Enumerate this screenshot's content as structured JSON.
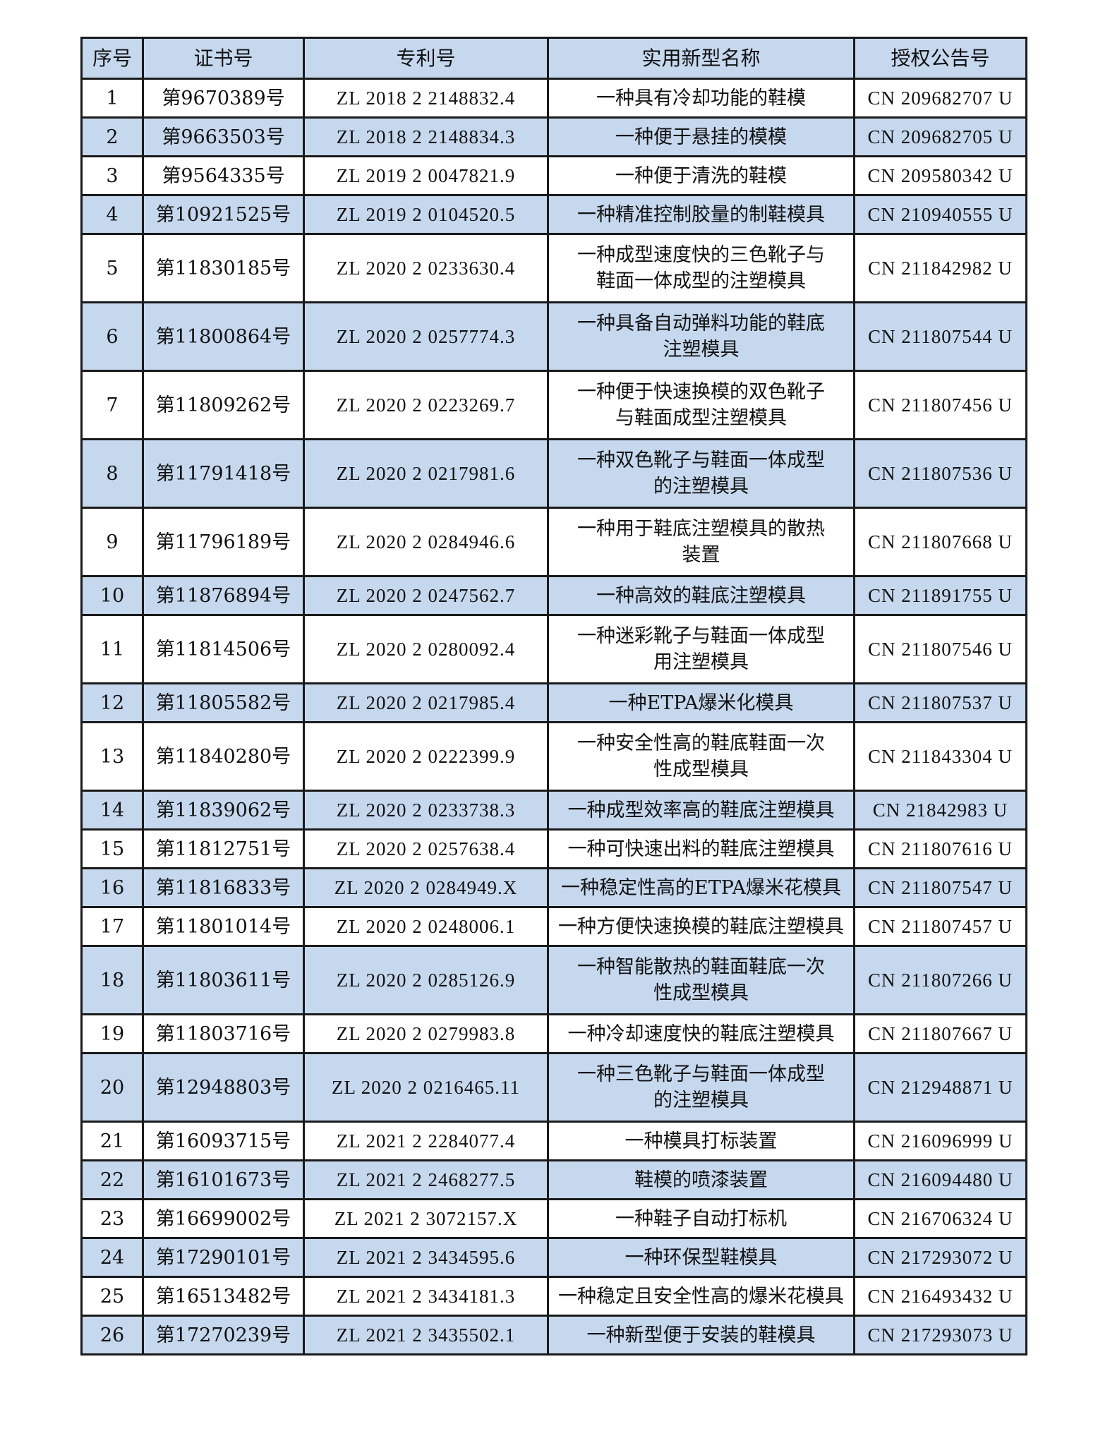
{
  "headers": [
    "序号",
    "证书号",
    "专利号",
    "实用新型名称",
    "授权公告号"
  ],
  "rows": [
    {
      "no": "1",
      "cert": "第9670389号",
      "patent": "ZL 2018 2 2148832.4",
      "name": [
        "一种具有冷却功能的鞋模"
      ],
      "pub": "CN 209682707 U"
    },
    {
      "no": "2",
      "cert": "第9663503号",
      "patent": "ZL 2018 2 2148834.3",
      "name": [
        "一种便于悬挂的模模"
      ],
      "pub": "CN 209682705 U"
    },
    {
      "no": "3",
      "cert": "第9564335号",
      "patent": "ZL 2019 2 0047821.9",
      "name": [
        "一种便于清洗的鞋模"
      ],
      "pub": "CN 209580342 U"
    },
    {
      "no": "4",
      "cert": "第10921525号",
      "patent": "ZL 2019 2 0104520.5",
      "name": [
        "一种精准控制胶量的制鞋模具"
      ],
      "pub": "CN 210940555 U"
    },
    {
      "no": "5",
      "cert": "第11830185号",
      "patent": "ZL 2020 2 0233630.4",
      "name": [
        "一种成型速度快的三色靴子与",
        "鞋面一体成型的注塑模具"
      ],
      "pub": "CN 211842982 U"
    },
    {
      "no": "6",
      "cert": "第11800864号",
      "patent": "ZL 2020 2 0257774.3",
      "name": [
        "一种具备自动弹料功能的鞋底",
        "注塑模具"
      ],
      "pub": "CN 211807544 U"
    },
    {
      "no": "7",
      "cert": "第11809262号",
      "patent": "ZL 2020 2 0223269.7",
      "name": [
        "一种便于快速换模的双色靴子",
        "与鞋面成型注塑模具"
      ],
      "pub": "CN 211807456 U"
    },
    {
      "no": "8",
      "cert": "第11791418号",
      "patent": "ZL 2020 2 0217981.6",
      "name": [
        "一种双色靴子与鞋面一体成型",
        "的注塑模具"
      ],
      "pub": "CN 211807536 U"
    },
    {
      "no": "9",
      "cert": "第11796189号",
      "patent": "ZL 2020 2 0284946.6",
      "name": [
        "一种用于鞋底注塑模具的散热",
        "装置"
      ],
      "pub": "CN 211807668 U"
    },
    {
      "no": "10",
      "cert": "第11876894号",
      "patent": "ZL 2020 2 0247562.7",
      "name": [
        "一种高效的鞋底注塑模具"
      ],
      "pub": "CN 211891755 U"
    },
    {
      "no": "11",
      "cert": "第11814506号",
      "patent": "ZL 2020 2 0280092.4",
      "name": [
        "一种迷彩靴子与鞋面一体成型",
        "用注塑模具"
      ],
      "pub": "CN 211807546 U"
    },
    {
      "no": "12",
      "cert": "第11805582号",
      "patent": "ZL 2020 2 0217985.4",
      "name": [
        "一种ETPA爆米化模具"
      ],
      "pub": "CN 211807537 U"
    },
    {
      "no": "13",
      "cert": "第11840280号",
      "patent": "ZL 2020 2 0222399.9",
      "name": [
        "一种安全性高的鞋底鞋面一次",
        "性成型模具"
      ],
      "pub": "CN 211843304 U"
    },
    {
      "no": "14",
      "cert": "第11839062号",
      "patent": "ZL 2020 2 0233738.3",
      "name": [
        "一种成型效率高的鞋底注塑模具"
      ],
      "pub": "CN 21842983 U"
    },
    {
      "no": "15",
      "cert": "第11812751号",
      "patent": "ZL 2020 2 0257638.4",
      "name": [
        "一种可快速出料的鞋底注塑模具"
      ],
      "pub": "CN 211807616 U"
    },
    {
      "no": "16",
      "cert": "第11816833号",
      "patent": "ZL 2020 2 0284949.X",
      "name": [
        "一种稳定性高的ETPA爆米花模具"
      ],
      "pub": "CN 211807547 U"
    },
    {
      "no": "17",
      "cert": "第11801014号",
      "patent": "ZL 2020 2 0248006.1",
      "name": [
        "一种方便快速换模的鞋底注塑模具"
      ],
      "pub": "CN 211807457 U"
    },
    {
      "no": "18",
      "cert": "第11803611号",
      "patent": "ZL 2020 2 0285126.9",
      "name": [
        "一种智能散热的鞋面鞋底一次",
        "性成型模具"
      ],
      "pub": "CN 211807266 U"
    },
    {
      "no": "19",
      "cert": "第11803716号",
      "patent": "ZL 2020 2 0279983.8",
      "name": [
        "一种冷却速度快的鞋底注塑模具"
      ],
      "pub": "CN 211807667 U"
    },
    {
      "no": "20",
      "cert": "第12948803号",
      "patent": "ZL 2020 2 0216465.11",
      "name": [
        "一种三色靴子与鞋面一体成型",
        "的注塑模具"
      ],
      "pub": "CN 212948871 U"
    },
    {
      "no": "21",
      "cert": "第16093715号",
      "patent": "ZL 2021 2 2284077.4",
      "name": [
        "一种模具打标装置"
      ],
      "pub": "CN 216096999 U"
    },
    {
      "no": "22",
      "cert": "第16101673号",
      "patent": "ZL 2021 2 2468277.5",
      "name": [
        "鞋模的喷漆装置"
      ],
      "pub": "CN 216094480 U"
    },
    {
      "no": "23",
      "cert": "第16699002号",
      "patent": "ZL 2021 2 3072157.X",
      "name": [
        "一种鞋子自动打标机"
      ],
      "pub": "CN 216706324 U"
    },
    {
      "no": "24",
      "cert": "第17290101号",
      "patent": "ZL 2021 2 3434595.6",
      "name": [
        "一种环保型鞋模具"
      ],
      "pub": "CN 217293072 U"
    },
    {
      "no": "25",
      "cert": "第16513482号",
      "patent": "ZL 2021 2 3434181.3",
      "name": [
        "一种稳定且安全性高的爆米花模具"
      ],
      "pub": "CN 216493432 U"
    },
    {
      "no": "26",
      "cert": "第17270239号",
      "patent": "ZL 2021 2 3435502.1",
      "name": [
        "一种新型便于安装的鞋模具"
      ],
      "pub": "CN 217293073 U"
    }
  ],
  "colors": {
    "header_bg": "#c6d8ee",
    "alt_row_bg": "#c6d8ee",
    "border": "#1a1a1a"
  }
}
